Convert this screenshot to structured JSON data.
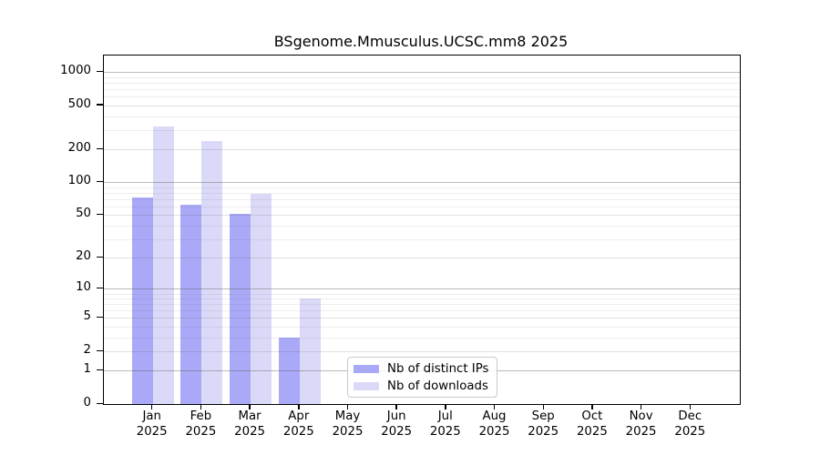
{
  "chart_data": {
    "type": "bar",
    "title": "BSgenome.Mmusculus.UCSC.mm8 2025",
    "categories": [
      "Jan",
      "Feb",
      "Mar",
      "Apr",
      "May",
      "Jun",
      "Jul",
      "Aug",
      "Sep",
      "Oct",
      "Nov",
      "Dec"
    ],
    "category_year": "2025",
    "series": [
      {
        "name": "Nb of distinct IPs",
        "color": "#a9a9f7",
        "values": [
          73,
          62,
          51,
          3,
          0,
          0,
          0,
          0,
          0,
          0,
          0,
          0
        ]
      },
      {
        "name": "Nb of downloads",
        "color": "#dadaf8",
        "values": [
          321,
          238,
          78,
          8,
          0,
          0,
          0,
          0,
          0,
          0,
          0,
          0
        ]
      }
    ],
    "xlabel": "",
    "ylabel": "",
    "yscale": "log1p",
    "y_tick_values": [
      0,
      1,
      2,
      5,
      10,
      20,
      50,
      100,
      200,
      500,
      1000
    ],
    "y_tick_labels": [
      "0",
      "1",
      "2",
      "5",
      "10",
      "20",
      "50",
      "100",
      "200",
      "500",
      "1000"
    ],
    "ylim": [
      0,
      1415
    ],
    "grid": "horizontal",
    "legend_position": "lower-center-inside"
  }
}
